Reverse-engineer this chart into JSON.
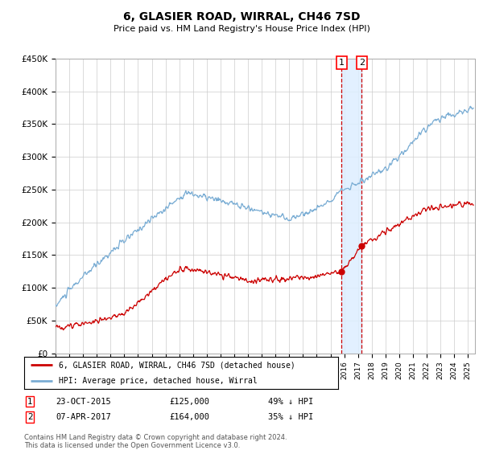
{
  "title": "6, GLASIER ROAD, WIRRAL, CH46 7SD",
  "subtitle": "Price paid vs. HM Land Registry's House Price Index (HPI)",
  "ylim": [
    0,
    450000
  ],
  "yticks": [
    0,
    50000,
    100000,
    150000,
    200000,
    250000,
    300000,
    350000,
    400000,
    450000
  ],
  "ytick_labels": [
    "£0",
    "£50K",
    "£100K",
    "£150K",
    "£200K",
    "£250K",
    "£300K",
    "£350K",
    "£400K",
    "£450K"
  ],
  "hpi_color": "#7aadd4",
  "price_color": "#cc0000",
  "t1_year": 2015.81,
  "t2_year": 2017.27,
  "t1_price": 125000,
  "t2_price": 164000,
  "vline_color": "#cc0000",
  "vshade_color": "#ddeeff",
  "legend_label_red": "6, GLASIER ROAD, WIRRAL, CH46 7SD (detached house)",
  "legend_label_blue": "HPI: Average price, detached house, Wirral",
  "transaction1_date": "23-OCT-2015",
  "transaction1_price": "£125,000",
  "transaction1_pct": "49% ↓ HPI",
  "transaction2_date": "07-APR-2017",
  "transaction2_price": "£164,000",
  "transaction2_pct": "35% ↓ HPI",
  "footer": "Contains HM Land Registry data © Crown copyright and database right 2024.\nThis data is licensed under the Open Government Licence v3.0.",
  "background_color": "#ffffff",
  "grid_color": "#cccccc",
  "xmin": 1995,
  "xmax": 2025.5
}
